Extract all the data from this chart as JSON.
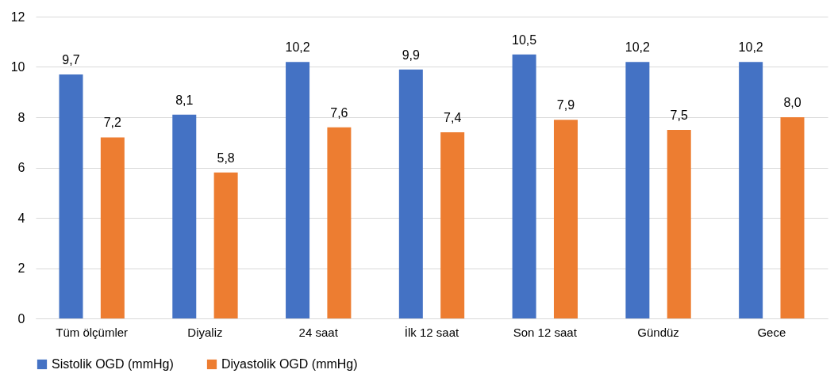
{
  "chart_data": {
    "type": "bar",
    "categories": [
      "Tüm ölçümler",
      "Diyaliz",
      "24 saat",
      "İlk 12 saat",
      "Son 12 saat",
      "Gündüz",
      "Gece"
    ],
    "series": [
      {
        "name": "Sistolik OGD (mmHg)",
        "color": "#4472c4",
        "values": [
          9.7,
          8.1,
          10.2,
          9.9,
          10.5,
          10.2,
          10.2
        ],
        "value_labels": [
          "9,7",
          "8,1",
          "10,2",
          "9,9",
          "10,5",
          "10,2",
          "10,2"
        ]
      },
      {
        "name": "Diyastolik OGD (mmHg)",
        "color": "#ed7d31",
        "values": [
          7.2,
          5.8,
          7.6,
          7.4,
          7.9,
          7.5,
          8.0
        ],
        "value_labels": [
          "7,2",
          "5,8",
          "7,6",
          "7,4",
          "7,9",
          "7,5",
          "8,0"
        ]
      }
    ],
    "ylim": [
      0,
      12
    ],
    "yticks": [
      0,
      2,
      4,
      6,
      8,
      10,
      12
    ],
    "grid": "y",
    "legend": "bottom"
  }
}
